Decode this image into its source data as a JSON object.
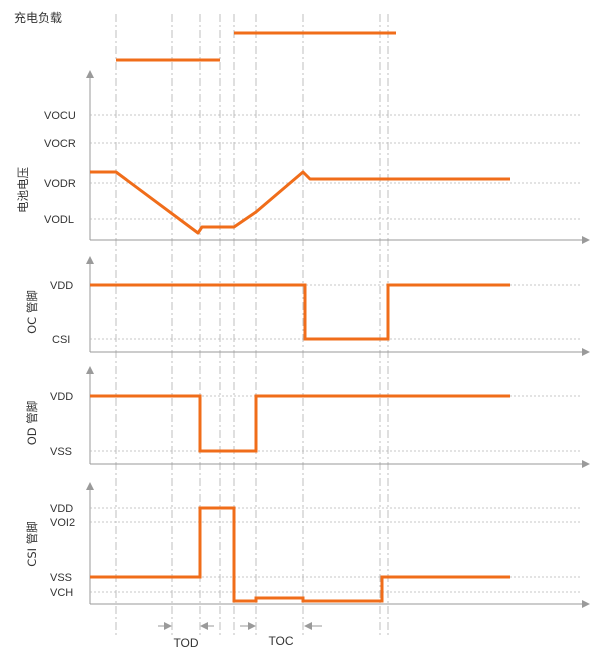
{
  "colors": {
    "signal": "#f06d1a",
    "axis": "#9a9a9a",
    "guide": "#b0b0b0",
    "text": "#333333"
  },
  "caption": "充电负载",
  "panels": {
    "battery": {
      "ylabel": "电池电压",
      "levels": {
        "vocu": "VOCU",
        "vocr": "VOCR",
        "vodr": "VODR",
        "vodl": "VODL"
      }
    },
    "oc": {
      "ylabel": "OC 管脚",
      "levels": {
        "vdd": "VDD",
        "csi": "CSI"
      }
    },
    "od": {
      "ylabel": "OD 管脚",
      "levels": {
        "vdd": "VDD",
        "vss": "VSS"
      }
    },
    "csi": {
      "ylabel": "CSI 管脚",
      "levels": {
        "vdd": "VDD",
        "voi2": "VOI2",
        "vss": "VSS",
        "vch": "VCH"
      }
    }
  },
  "timing": {
    "tod": "TOD",
    "toc": "TOC"
  }
}
